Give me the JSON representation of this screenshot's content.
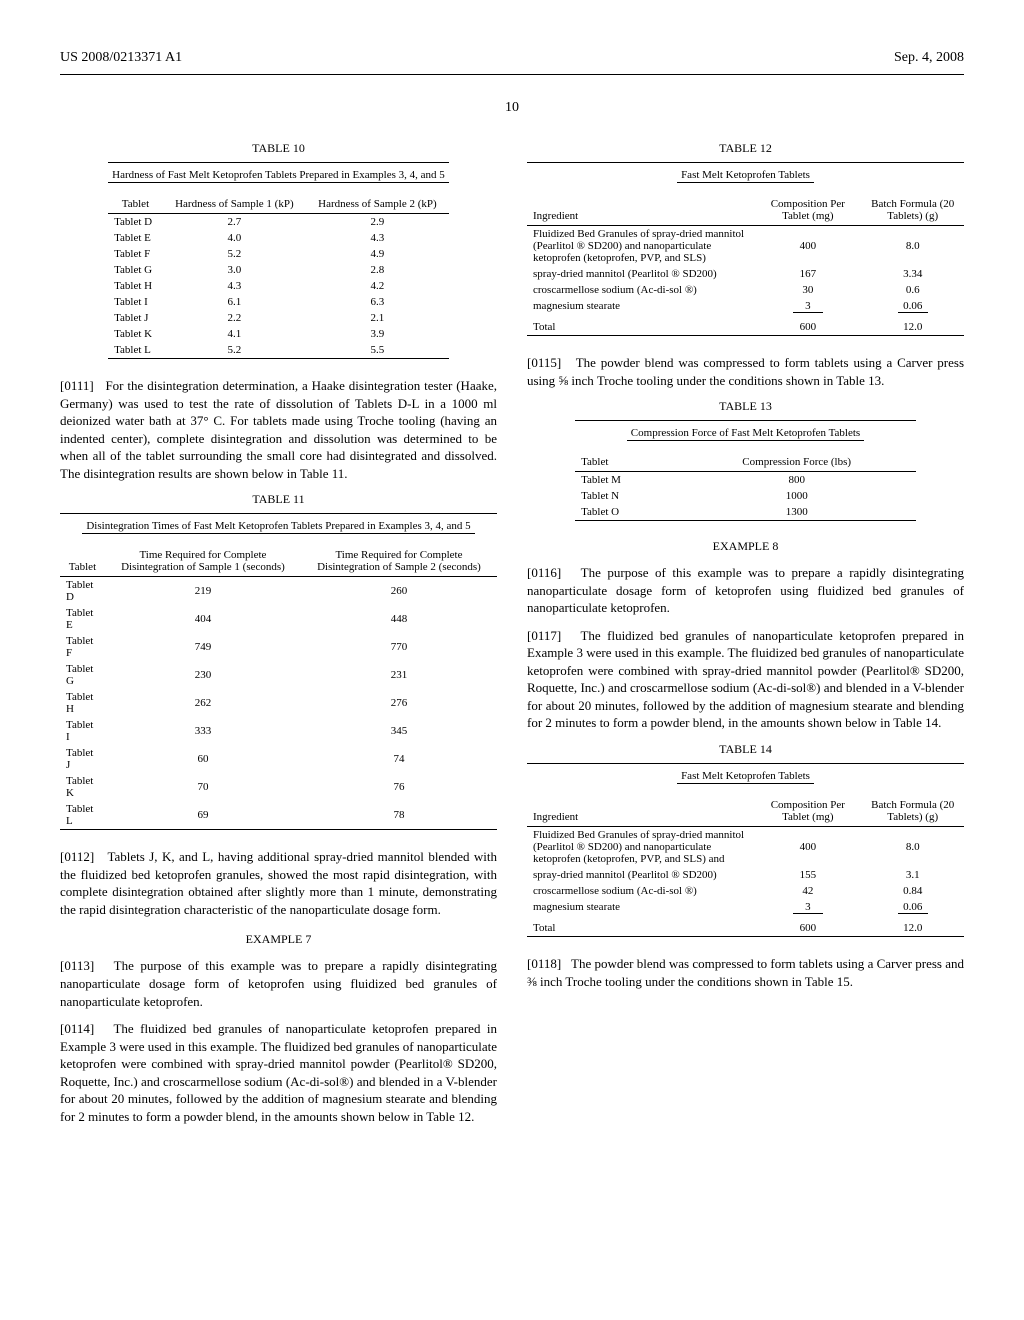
{
  "header": {
    "docnum": "US 2008/0213371 A1",
    "date": "Sep. 4, 2008",
    "pagenum": "10"
  },
  "table10": {
    "label": "TABLE 10",
    "caption": "Hardness of Fast Melt Ketoprofen Tablets Prepared in Examples 3, 4, and 5",
    "h1": "Tablet",
    "h2": "Hardness of Sample 1 (kP)",
    "h3": "Hardness of Sample 2 (kP)",
    "rows": [
      [
        "Tablet D",
        "2.7",
        "2.9"
      ],
      [
        "Tablet E",
        "4.0",
        "4.3"
      ],
      [
        "Tablet F",
        "5.2",
        "4.9"
      ],
      [
        "Tablet G",
        "3.0",
        "2.8"
      ],
      [
        "Tablet H",
        "4.3",
        "4.2"
      ],
      [
        "Tablet I",
        "6.1",
        "6.3"
      ],
      [
        "Tablet J",
        "2.2",
        "2.1"
      ],
      [
        "Tablet K",
        "4.1",
        "3.9"
      ],
      [
        "Tablet L",
        "5.2",
        "5.5"
      ]
    ]
  },
  "p0111": {
    "num": "[0111]",
    "text": "For the disintegration determination, a Haake disintegration tester (Haake, Germany) was used to test the rate of dissolution of Tablets D-L in a 1000 ml deionized water bath at 37° C. For tablets made using Troche tooling (having an indented center), complete disintegration and dissolution was determined to be when all of the tablet surrounding the small core had disintegrated and dissolved. The disintegration results are shown below in Table 11."
  },
  "table11": {
    "label": "TABLE 11",
    "caption": "Disintegration Times of Fast Melt Ketoprofen Tablets Prepared in Examples 3, 4, and 5",
    "h1": "Tablet",
    "h2": "Time Required for Complete Disintegration of Sample 1 (seconds)",
    "h3": "Time Required for Complete Disintegration of Sample 2 (seconds)",
    "rows": [
      [
        "Tablet D",
        "219",
        "260"
      ],
      [
        "Tablet E",
        "404",
        "448"
      ],
      [
        "Tablet F",
        "749",
        "770"
      ],
      [
        "Tablet G",
        "230",
        "231"
      ],
      [
        "Tablet H",
        "262",
        "276"
      ],
      [
        "Tablet I",
        "333",
        "345"
      ],
      [
        "Tablet J",
        "60",
        "74"
      ],
      [
        "Tablet K",
        "70",
        "76"
      ],
      [
        "Tablet L",
        "69",
        "78"
      ]
    ]
  },
  "p0112": {
    "num": "[0112]",
    "text": "Tablets J, K, and L, having additional spray-dried mannitol blended with the fluidized bed ketoprofen granules, showed the most rapid disintegration, with complete disintegration obtained after slightly more than 1 minute, demonstrating the rapid disintegration characteristic of the nanoparticulate dosage form."
  },
  "ex7title": "EXAMPLE 7",
  "p0113": {
    "num": "[0113]",
    "text": "The purpose of this example was to prepare a rapidly disintegrating nanoparticulate dosage form of ketoprofen using fluidized bed granules of nanoparticulate ketoprofen."
  },
  "p0114": {
    "num": "[0114]",
    "text": "The fluidized bed granules of nanoparticulate ketoprofen prepared in Example 3 were used in this example. The fluidized bed granules of nanoparticulate ketoprofen were combined with spray-dried mannitol powder (Pearlitol® SD200, Roquette, Inc.) and croscarmellose sodium (Ac-di-sol®) and blended in a V-blender for about 20 minutes, followed by the addition of magnesium stearate and blending for 2 minutes to form a powder blend, in the amounts shown below in Table 12."
  },
  "table12": {
    "label": "TABLE 12",
    "caption": "Fast Melt Ketoprofen Tablets",
    "h1": "Ingredient",
    "h2": "Composition Per Tablet (mg)",
    "h3": "Batch Formula (20 Tablets) (g)",
    "rows": [
      [
        "Fluidized Bed Granules of spray-dried mannitol (Pearlitol ® SD200) and nanoparticulate ketoprofen (ketoprofen, PVP, and SLS)",
        "400",
        "8.0"
      ],
      [
        "spray-dried mannitol (Pearlitol ® SD200)",
        "167",
        "3.34"
      ],
      [
        "croscarmellose sodium (Ac-di-sol ®)",
        "30",
        "0.6"
      ],
      [
        "magnesium stearate",
        "3",
        "0.06"
      ]
    ],
    "total": [
      "Total",
      "600",
      "12.0"
    ]
  },
  "p0115": {
    "num": "[0115]",
    "text": "The powder blend was compressed to form tablets using a Carver press using ⅝ inch Troche tooling under the conditions shown in Table 13."
  },
  "table13": {
    "label": "TABLE 13",
    "caption": "Compression Force of Fast Melt Ketoprofen Tablets",
    "h1": "Tablet",
    "h2": "Compression Force (lbs)",
    "rows": [
      [
        "Tablet M",
        "800"
      ],
      [
        "Tablet N",
        "1000"
      ],
      [
        "Tablet O",
        "1300"
      ]
    ]
  },
  "ex8title": "EXAMPLE 8",
  "p0116": {
    "num": "[0116]",
    "text": "The purpose of this example was to prepare a rapidly disintegrating nanoparticulate dosage form of ketoprofen using fluidized bed granules of nanoparticulate ketoprofen."
  },
  "p0117": {
    "num": "[0117]",
    "text": "The fluidized bed granules of nanoparticulate ketoprofen prepared in Example 3 were used in this example. The fluidized bed granules of nanoparticulate ketoprofen were combined with spray-dried mannitol powder (Pearlitol® SD200, Roquette, Inc.) and croscarmellose sodium (Ac-di-sol®) and blended in a V-blender for about 20 minutes, followed by the addition of magnesium stearate and blending for 2 minutes to form a powder blend, in the amounts shown below in Table 14."
  },
  "table14": {
    "label": "TABLE 14",
    "caption": "Fast Melt Ketoprofen Tablets",
    "h1": "Ingredient",
    "h2": "Composition Per Tablet (mg)",
    "h3": "Batch Formula (20 Tablets) (g)",
    "rows": [
      [
        "Fluidized Bed Granules of spray-dried mannitol (Pearlitol ® SD200) and nanoparticulate ketoprofen (ketoprofen, PVP, and SLS) and",
        "400",
        "8.0"
      ],
      [
        "spray-dried mannitol (Pearlitol ® SD200)",
        "155",
        "3.1"
      ],
      [
        "croscarmellose sodium (Ac-di-sol ®)",
        "42",
        "0.84"
      ],
      [
        "magnesium stearate",
        "3",
        "0.06"
      ]
    ],
    "total": [
      "Total",
      "600",
      "12.0"
    ]
  },
  "p0118": {
    "num": "[0118]",
    "text": "The powder blend was compressed to form tablets using a Carver press and ⅜ inch Troche tooling under the conditions shown in Table 15."
  }
}
